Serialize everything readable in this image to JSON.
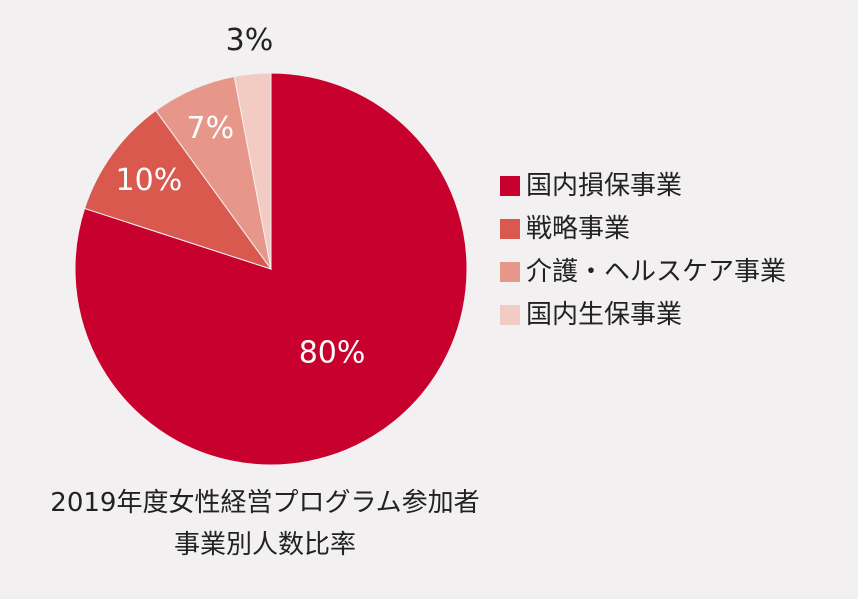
{
  "chart_data": {
    "type": "pie",
    "title": "2019年度女性経営プログラム参加者",
    "subtitle": "事業別人数比率",
    "categories": [
      "国内損保事業",
      "戦略事業",
      "介護・ヘルスケア事業",
      "国内生保事業"
    ],
    "values": [
      80,
      10,
      7,
      3
    ],
    "data_labels": [
      "80%",
      "10%",
      "7%",
      "3%"
    ],
    "colors": [
      "#c8002d",
      "#d9594f",
      "#e6978a",
      "#f2cbc2"
    ],
    "label_colors": [
      "#ffffff",
      "#ffffff",
      "#ffffff",
      "#222222"
    ],
    "start": "12 o'clock",
    "direction": "clockwise",
    "legend_position": "right"
  }
}
